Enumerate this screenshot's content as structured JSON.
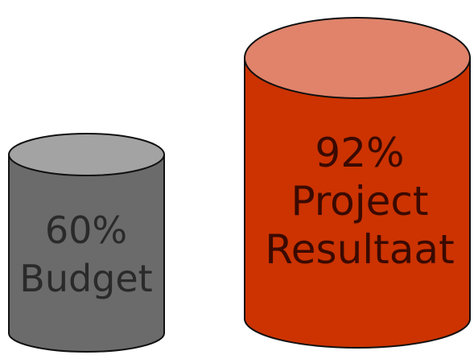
{
  "cylinders": [
    {
      "percent_label": "60%",
      "name_label": "Budget",
      "value": 60,
      "colors": {
        "body": "#6b6b6b",
        "top": "#a3a3a3",
        "text": "#2a2a2a",
        "outline": "#111111"
      }
    },
    {
      "percent_label": "92%",
      "name_label": "Project",
      "name_label_2": "Resultaat",
      "value": 92,
      "colors": {
        "body": "#cc3300",
        "top": "#e0836a",
        "text": "#3a0a00",
        "outline": "#111111"
      }
    }
  ]
}
